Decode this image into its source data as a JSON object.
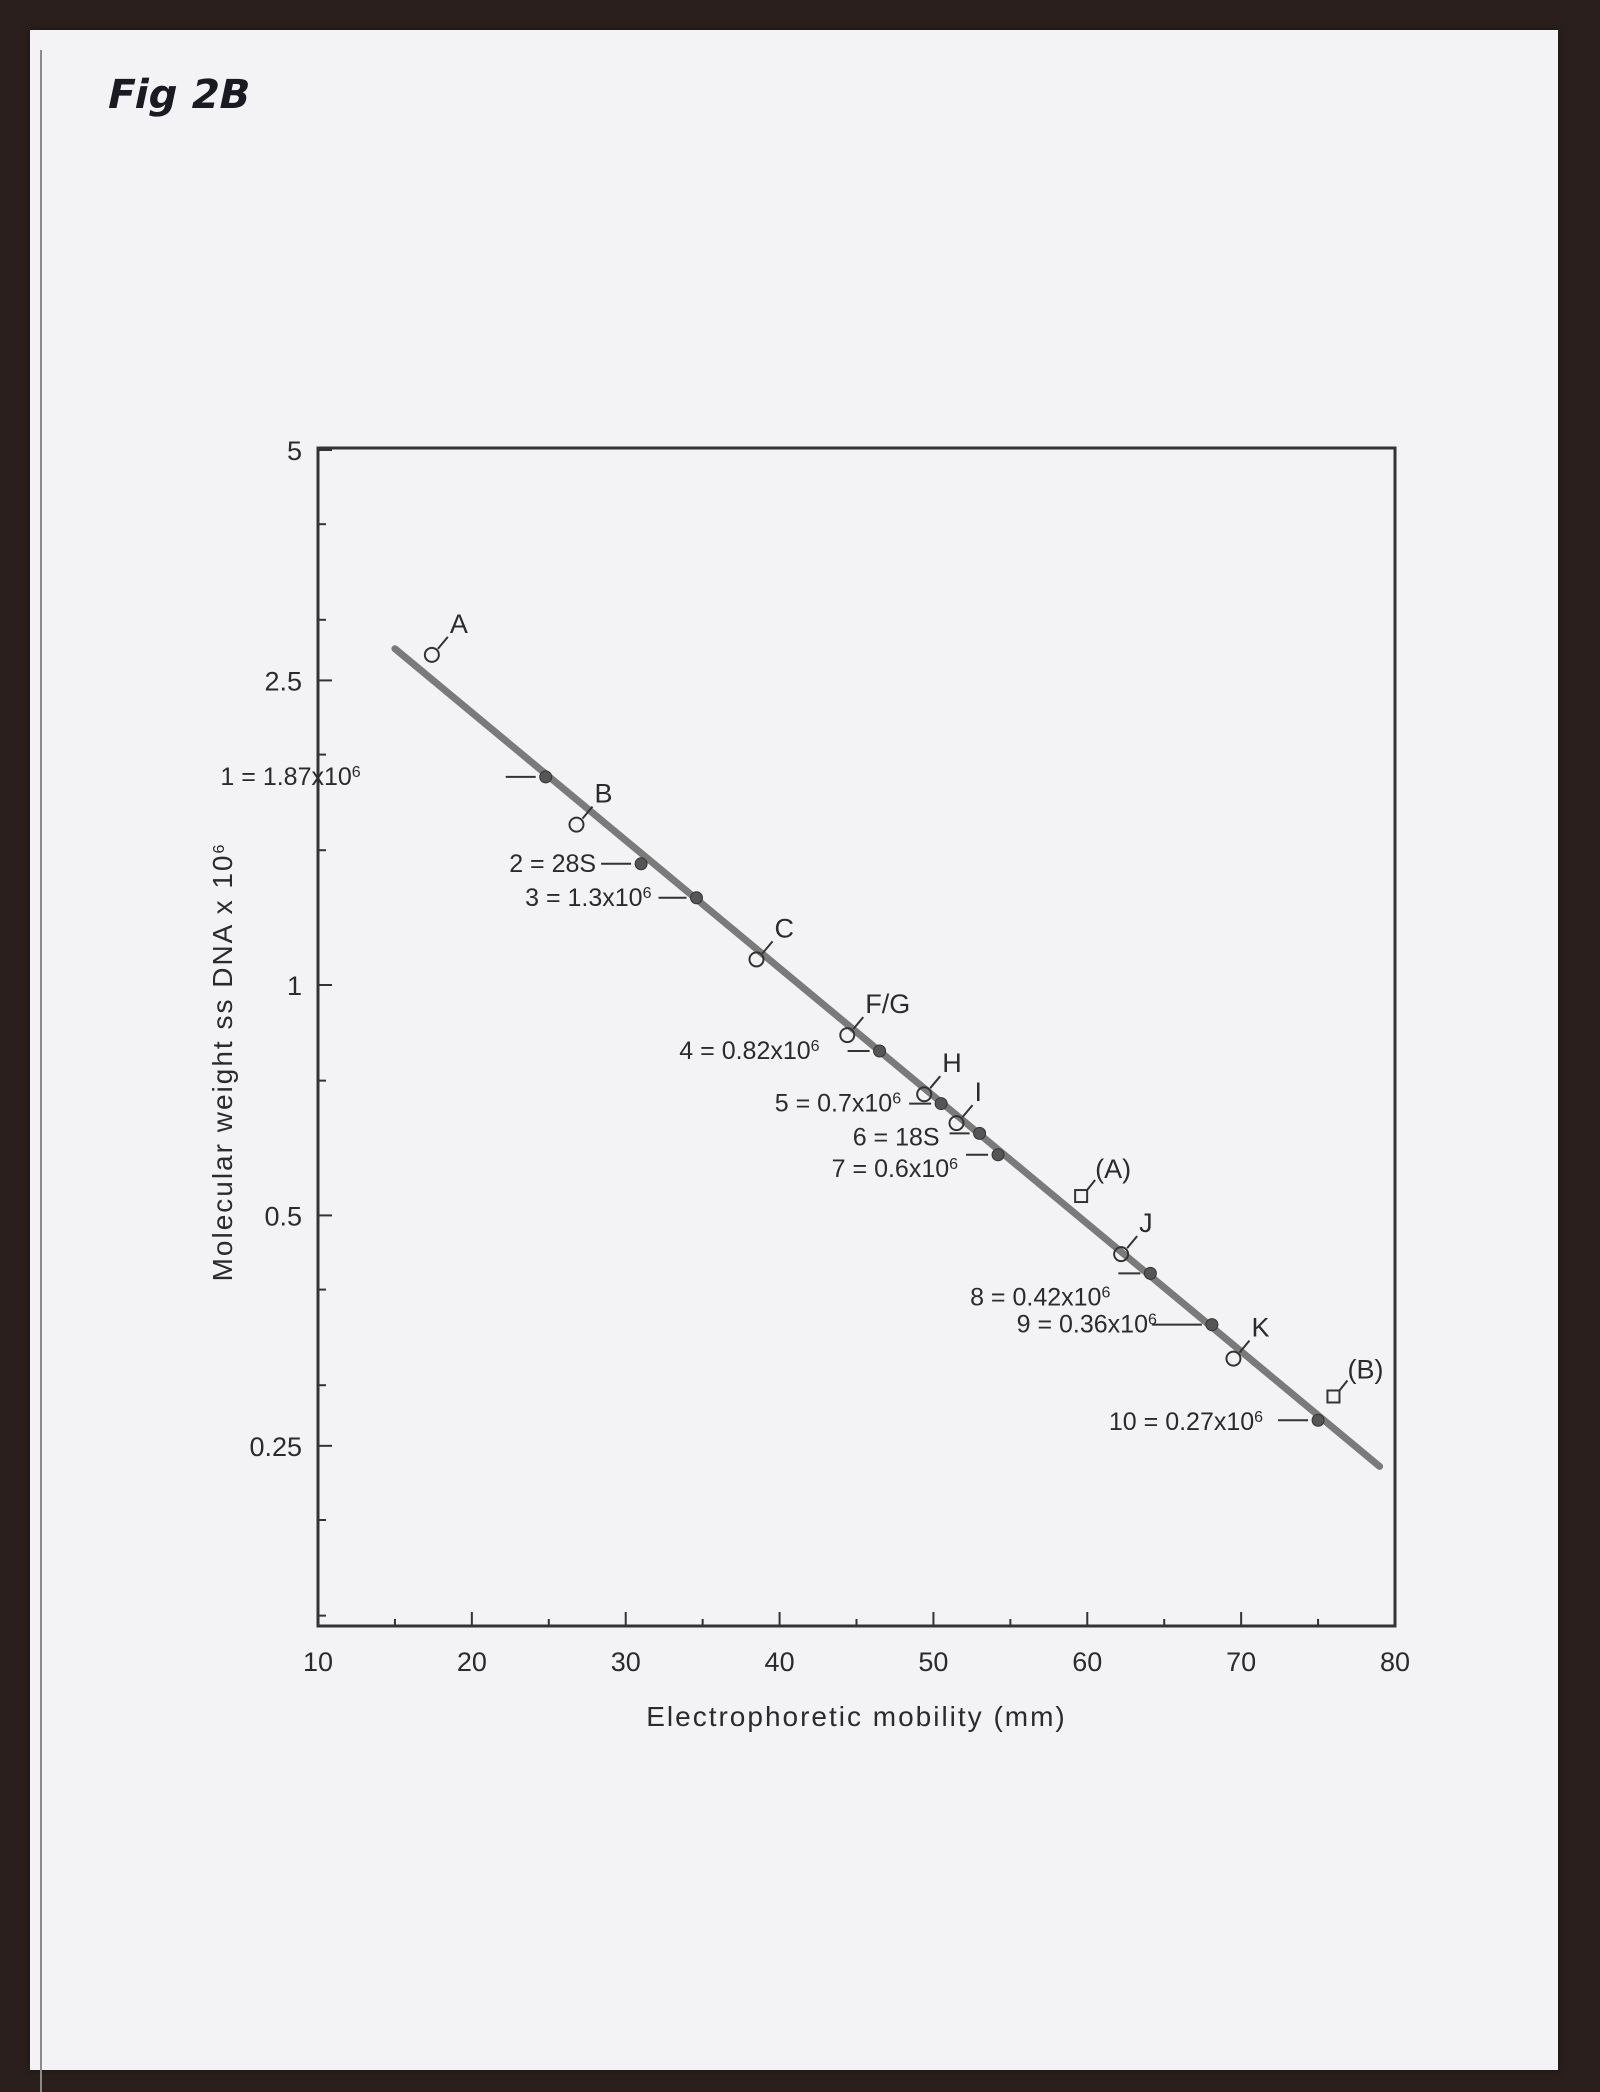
{
  "figure_label": "Fig 2B",
  "chart_data": {
    "type": "scatter",
    "xlabel": "Electrophoretic mobility (mm)",
    "ylabel": "Molecular weight ss DNA x 10⁶",
    "xlim": [
      10,
      80
    ],
    "ylim": [
      0.125,
      5
    ],
    "y_scale": "log",
    "x_ticks": [
      "10",
      "20",
      "30",
      "40",
      "50",
      "60",
      "70",
      "80"
    ],
    "y_ticks": [
      {
        "value": 5,
        "label": "5"
      },
      {
        "value": 2.5,
        "label": "2.5"
      },
      {
        "value": 1,
        "label": "1"
      },
      {
        "value": 0.5,
        "label": "0.5"
      },
      {
        "value": 0.25,
        "label": "0.25"
      }
    ],
    "fit_line": {
      "x": [
        15,
        79
      ],
      "y": [
        2.75,
        0.235
      ]
    },
    "standards": {
      "marker": "filled-circle",
      "points": [
        {
          "x": 24.8,
          "y": 1.87,
          "label": "1 = 1.87x10⁶"
        },
        {
          "x": 31.0,
          "y": 1.44,
          "label": "2 = 28S"
        },
        {
          "x": 34.6,
          "y": 1.3,
          "label": "3 = 1.3x10⁶"
        },
        {
          "x": 46.5,
          "y": 0.82,
          "label": "4 = 0.82x10⁶"
        },
        {
          "x": 50.5,
          "y": 0.7,
          "label": "5 = 0.7x10⁶"
        },
        {
          "x": 53.0,
          "y": 0.64,
          "label": "6 = 18S"
        },
        {
          "x": 54.2,
          "y": 0.6,
          "label": "7 = 0.6x10⁶"
        },
        {
          "x": 64.1,
          "y": 0.42,
          "label": "8 = 0.42x10⁶"
        },
        {
          "x": 68.1,
          "y": 0.36,
          "label": "9 = 0.36x10⁶"
        },
        {
          "x": 75.0,
          "y": 0.27,
          "label": "10 = 0.27x10⁶"
        }
      ]
    },
    "samples": {
      "marker": "open-circle",
      "points": [
        {
          "x": 17.4,
          "y": 2.7,
          "label": "A"
        },
        {
          "x": 26.8,
          "y": 1.62,
          "label": "B"
        },
        {
          "x": 38.5,
          "y": 1.08,
          "label": "C"
        },
        {
          "x": 44.4,
          "y": 0.86,
          "label": "F/G"
        },
        {
          "x": 49.4,
          "y": 0.72,
          "label": "H"
        },
        {
          "x": 51.5,
          "y": 0.66,
          "label": "I"
        },
        {
          "x": 62.2,
          "y": 0.445,
          "label": "J"
        },
        {
          "x": 69.5,
          "y": 0.325,
          "label": "K"
        }
      ]
    },
    "other_samples": {
      "marker": "open-square",
      "points": [
        {
          "x": 59.6,
          "y": 0.53,
          "label": "(A)"
        },
        {
          "x": 76.0,
          "y": 0.29,
          "label": "(B)"
        }
      ]
    }
  }
}
